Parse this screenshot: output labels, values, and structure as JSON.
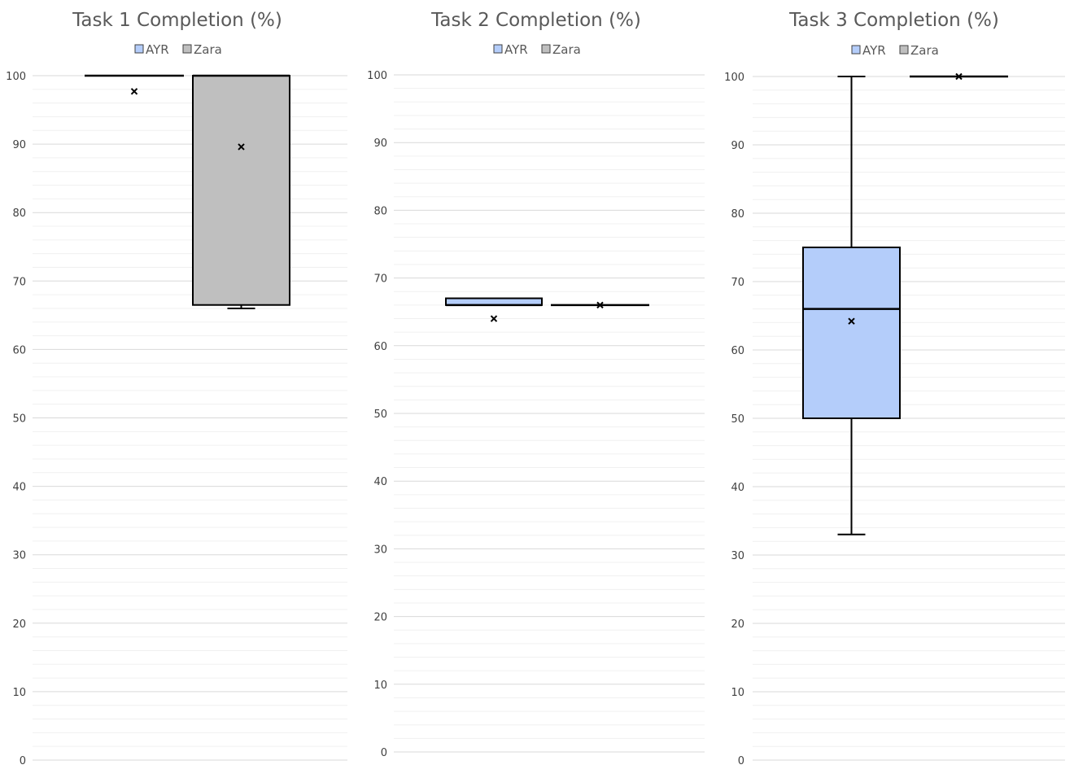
{
  "colors": {
    "AYR": "#b4cdfa",
    "Zara": "#bfbfbf",
    "stroke": "#000000",
    "major_grid": "#d9d9d9",
    "minor_grid": "#f0f0f0",
    "text": "#595959"
  },
  "chart_data": [
    {
      "type": "boxplot",
      "title": "Task 1 Completion (%)",
      "ylim": [
        0,
        100
      ],
      "yticks": [
        "0",
        "10",
        "20",
        "30",
        "40",
        "50",
        "60",
        "70",
        "80",
        "90",
        "100"
      ],
      "grid": true,
      "legend_position": "top",
      "legend": [
        "AYR",
        "Zara"
      ],
      "series": [
        {
          "name": "AYR",
          "min": 100,
          "q1": 100,
          "median": 100,
          "q3": 100,
          "max": 100,
          "mean": 97.7
        },
        {
          "name": "Zara",
          "min": 66,
          "q1": 66.5,
          "median": 100,
          "q3": 100,
          "max": 100,
          "mean": 89.6
        }
      ]
    },
    {
      "type": "boxplot",
      "title": "Task 2 Completion (%)",
      "ylim": [
        0,
        100
      ],
      "yticks": [
        "0",
        "10",
        "20",
        "30",
        "40",
        "50",
        "60",
        "70",
        "80",
        "90",
        "100"
      ],
      "grid": true,
      "legend_position": "top",
      "legend": [
        "AYR",
        "Zara"
      ],
      "series": [
        {
          "name": "AYR",
          "min": 66,
          "q1": 66,
          "median": 66,
          "q3": 67,
          "max": 67,
          "mean": 64
        },
        {
          "name": "Zara",
          "min": 66,
          "q1": 66,
          "median": 66,
          "q3": 66,
          "max": 66,
          "mean": 66
        }
      ]
    },
    {
      "type": "boxplot",
      "title": "Task 3 Completion (%)",
      "ylim": [
        0,
        100
      ],
      "yticks": [
        "0",
        "10",
        "20",
        "30",
        "40",
        "50",
        "60",
        "70",
        "80",
        "90",
        "100"
      ],
      "grid": true,
      "legend_position": "top",
      "legend": [
        "AYR",
        "Zara"
      ],
      "series": [
        {
          "name": "AYR",
          "min": 33,
          "q1": 50,
          "median": 66,
          "q3": 75,
          "max": 100,
          "mean": 64.2
        },
        {
          "name": "Zara",
          "min": 100,
          "q1": 100,
          "median": 100,
          "q3": 100,
          "max": 100,
          "mean": 100
        }
      ]
    }
  ]
}
